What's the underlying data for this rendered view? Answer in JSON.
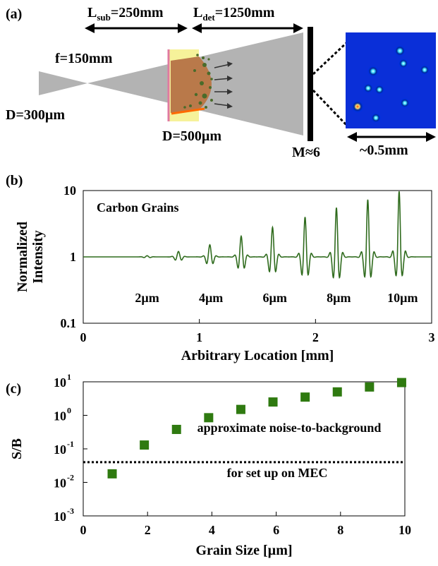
{
  "colors": {
    "curve": "#2f6b1d",
    "marker": "#2f7a10",
    "beam": "#b3b3b3",
    "plasma": "#b9794a",
    "foil": "#f6f29a",
    "foil_edge": "#e07aa0",
    "grain": "#4a6b2a",
    "detector_bg": "#0a2fd8"
  },
  "panel_a": {
    "label": "(a)",
    "lsub_main": "L",
    "lsub_sub": "sub",
    "lsub_val": "=250mm",
    "ldet_main": "L",
    "ldet_sub": "det",
    "ldet_val": "=1250mm",
    "focal": "f=150mm",
    "d_source": "D=300µm",
    "d_target": "D=500µm",
    "magnification": "M≈6",
    "fov": "~0.5mm"
  },
  "panel_b": {
    "label": "(b)"
  },
  "panel_c": {
    "label": "(c)"
  },
  "chart_data": [
    {
      "type": "line",
      "title": "",
      "annotation": "Carbon Grains",
      "xlabel": "Arbitrary Location [mm]",
      "ylabel_line1": "Normalized",
      "ylabel_line2": "Intensity",
      "ylog": true,
      "xlim": [
        0,
        3
      ],
      "ylim": [
        0.1,
        10
      ],
      "x_ticks": [
        "0",
        "1",
        "2",
        "3"
      ],
      "y_ticks": [
        "0.1",
        "1",
        "10"
      ],
      "series": [
        {
          "peaks": [
            {
              "x": 0.55,
              "max": 1.04,
              "min": 0.96
            },
            {
              "x": 0.82,
              "max": 1.2,
              "min": 0.82
            },
            {
              "x": 1.09,
              "max": 1.5,
              "min": 0.66
            },
            {
              "x": 1.36,
              "max": 2.0,
              "min": 0.5
            },
            {
              "x": 1.63,
              "max": 2.7,
              "min": 0.4
            },
            {
              "x": 1.91,
              "max": 3.8,
              "min": 0.33
            },
            {
              "x": 2.18,
              "max": 5.2,
              "min": 0.28
            },
            {
              "x": 2.45,
              "max": 6.8,
              "min": 0.3
            },
            {
              "x": 2.72,
              "max": 9.0,
              "min": 0.33
            }
          ]
        }
      ],
      "grain_labels": [
        {
          "x": 0.55,
          "text": "2µm"
        },
        {
          "x": 1.1,
          "text": "4µm"
        },
        {
          "x": 1.65,
          "text": "6µm"
        },
        {
          "x": 2.2,
          "text": "8µm"
        },
        {
          "x": 2.75,
          "text": "10µm"
        }
      ]
    },
    {
      "type": "scatter",
      "xlabel": "Grain Size [µm]",
      "ylabel": "S/B",
      "ylog": true,
      "xlim": [
        0,
        10
      ],
      "ylim": [
        0.001,
        10
      ],
      "x_ticks": [
        "0",
        "2",
        "4",
        "6",
        "8",
        "10"
      ],
      "y_ticks": [
        {
          "base": "10",
          "exp": "1",
          "v": 10
        },
        {
          "base": "10",
          "exp": "0",
          "v": 1
        },
        {
          "base": "10",
          "exp": "-1",
          "v": 0.1
        },
        {
          "base": "10",
          "exp": "-2",
          "v": 0.01
        },
        {
          "base": "10",
          "exp": "-3",
          "v": 0.001
        }
      ],
      "x": [
        0.9,
        1.9,
        2.9,
        3.9,
        4.9,
        5.9,
        6.9,
        7.9,
        8.9,
        9.9
      ],
      "y": [
        0.018,
        0.13,
        0.38,
        0.85,
        1.5,
        2.5,
        3.5,
        5.0,
        7.0,
        9.5
      ],
      "threshold": 0.04,
      "threshold_label_line1": "approximate noise-to-background",
      "threshold_label_line2": "for set up on MEC"
    }
  ]
}
